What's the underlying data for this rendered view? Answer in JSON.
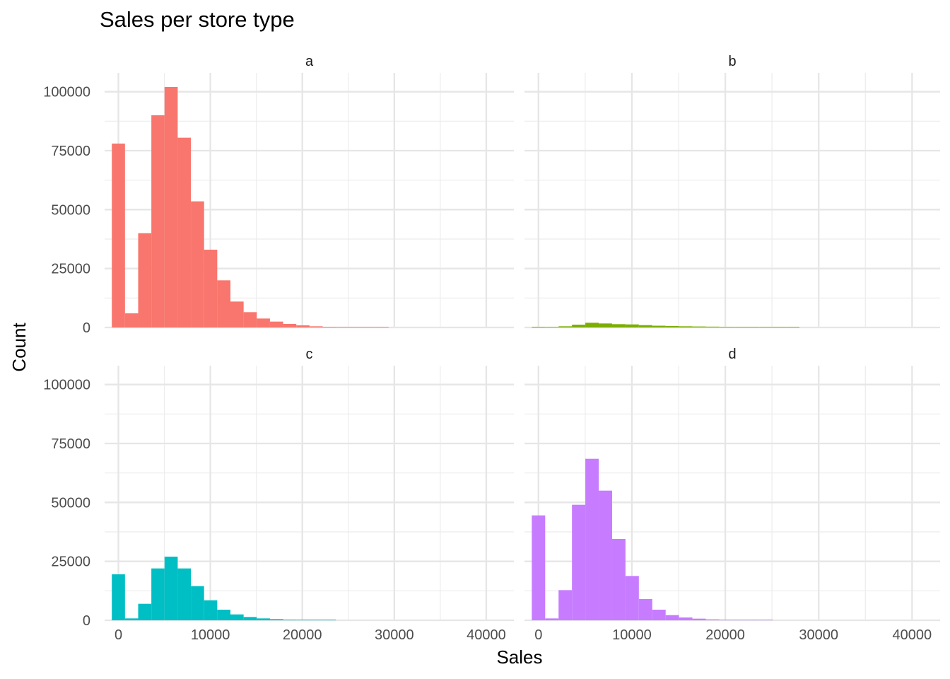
{
  "chart_data": {
    "type": "histogram",
    "title": "Sales per store type",
    "xlabel": "Sales",
    "ylabel": "Count",
    "facet_layout": "2x2 grid, shared axes",
    "xlim": [
      -1500,
      43000
    ],
    "ylim": [
      0,
      108000
    ],
    "x_ticks": [
      0,
      10000,
      20000,
      30000,
      40000
    ],
    "y_ticks": [
      0,
      25000,
      50000,
      75000,
      100000
    ],
    "x_tick_labels": [
      "0",
      "10000",
      "20000",
      "30000",
      "40000"
    ],
    "y_tick_labels": [
      "0",
      "25000",
      "50000",
      "75000",
      "100000"
    ],
    "bin_width": 1433,
    "grid": true,
    "legend": "none",
    "panels": [
      {
        "label": "a",
        "color": "#F8766D",
        "bins": [
          {
            "x": 0,
            "count": 78000
          },
          {
            "x": 1433,
            "count": 6000
          },
          {
            "x": 2866,
            "count": 40000
          },
          {
            "x": 4299,
            "count": 90000
          },
          {
            "x": 5732,
            "count": 102000
          },
          {
            "x": 7165,
            "count": 80500
          },
          {
            "x": 8598,
            "count": 53500
          },
          {
            "x": 10031,
            "count": 33000
          },
          {
            "x": 11464,
            "count": 20000
          },
          {
            "x": 12897,
            "count": 11000
          },
          {
            "x": 14330,
            "count": 6500
          },
          {
            "x": 15763,
            "count": 3800
          },
          {
            "x": 17196,
            "count": 2500
          },
          {
            "x": 18629,
            "count": 1500
          },
          {
            "x": 20062,
            "count": 900
          },
          {
            "x": 21495,
            "count": 500
          },
          {
            "x": 22928,
            "count": 300
          },
          {
            "x": 24361,
            "count": 200
          },
          {
            "x": 25794,
            "count": 100
          },
          {
            "x": 27227,
            "count": 80
          },
          {
            "x": 28660,
            "count": 50
          }
        ]
      },
      {
        "label": "b",
        "color": "#7CAE00",
        "bins": [
          {
            "x": 0,
            "count": 300
          },
          {
            "x": 1433,
            "count": 100
          },
          {
            "x": 2866,
            "count": 500
          },
          {
            "x": 4299,
            "count": 1200
          },
          {
            "x": 5732,
            "count": 2000
          },
          {
            "x": 7165,
            "count": 1700
          },
          {
            "x": 8598,
            "count": 1400
          },
          {
            "x": 10031,
            "count": 1300
          },
          {
            "x": 11464,
            "count": 1000
          },
          {
            "x": 12897,
            "count": 750
          },
          {
            "x": 14330,
            "count": 600
          },
          {
            "x": 15763,
            "count": 500
          },
          {
            "x": 17196,
            "count": 420
          },
          {
            "x": 18629,
            "count": 350
          },
          {
            "x": 20062,
            "count": 280
          },
          {
            "x": 21495,
            "count": 200
          },
          {
            "x": 22928,
            "count": 150
          },
          {
            "x": 24361,
            "count": 100
          },
          {
            "x": 25794,
            "count": 70
          },
          {
            "x": 27227,
            "count": 50
          }
        ]
      },
      {
        "label": "c",
        "color": "#00BFC4",
        "bins": [
          {
            "x": 0,
            "count": 19500
          },
          {
            "x": 1433,
            "count": 800
          },
          {
            "x": 2866,
            "count": 7000
          },
          {
            "x": 4299,
            "count": 22000
          },
          {
            "x": 5732,
            "count": 27000
          },
          {
            "x": 7165,
            "count": 22000
          },
          {
            "x": 8598,
            "count": 14500
          },
          {
            "x": 10031,
            "count": 8500
          },
          {
            "x": 11464,
            "count": 4500
          },
          {
            "x": 12897,
            "count": 2500
          },
          {
            "x": 14330,
            "count": 1400
          },
          {
            "x": 15763,
            "count": 800
          },
          {
            "x": 17196,
            "count": 500
          },
          {
            "x": 18629,
            "count": 300
          },
          {
            "x": 20062,
            "count": 200
          },
          {
            "x": 21495,
            "count": 120
          },
          {
            "x": 22928,
            "count": 80
          }
        ]
      },
      {
        "label": "d",
        "color": "#C77CFF",
        "bins": [
          {
            "x": 0,
            "count": 44500
          },
          {
            "x": 1433,
            "count": 800
          },
          {
            "x": 2866,
            "count": 12800
          },
          {
            "x": 4299,
            "count": 49000
          },
          {
            "x": 5732,
            "count": 68500
          },
          {
            "x": 7165,
            "count": 55000
          },
          {
            "x": 8598,
            "count": 34500
          },
          {
            "x": 10031,
            "count": 18800
          },
          {
            "x": 11464,
            "count": 9000
          },
          {
            "x": 12897,
            "count": 4500
          },
          {
            "x": 14330,
            "count": 2200
          },
          {
            "x": 15763,
            "count": 1200
          },
          {
            "x": 17196,
            "count": 700
          },
          {
            "x": 18629,
            "count": 400
          },
          {
            "x": 20062,
            "count": 250
          },
          {
            "x": 21495,
            "count": 150
          },
          {
            "x": 22928,
            "count": 100
          },
          {
            "x": 24361,
            "count": 60
          }
        ]
      }
    ]
  }
}
